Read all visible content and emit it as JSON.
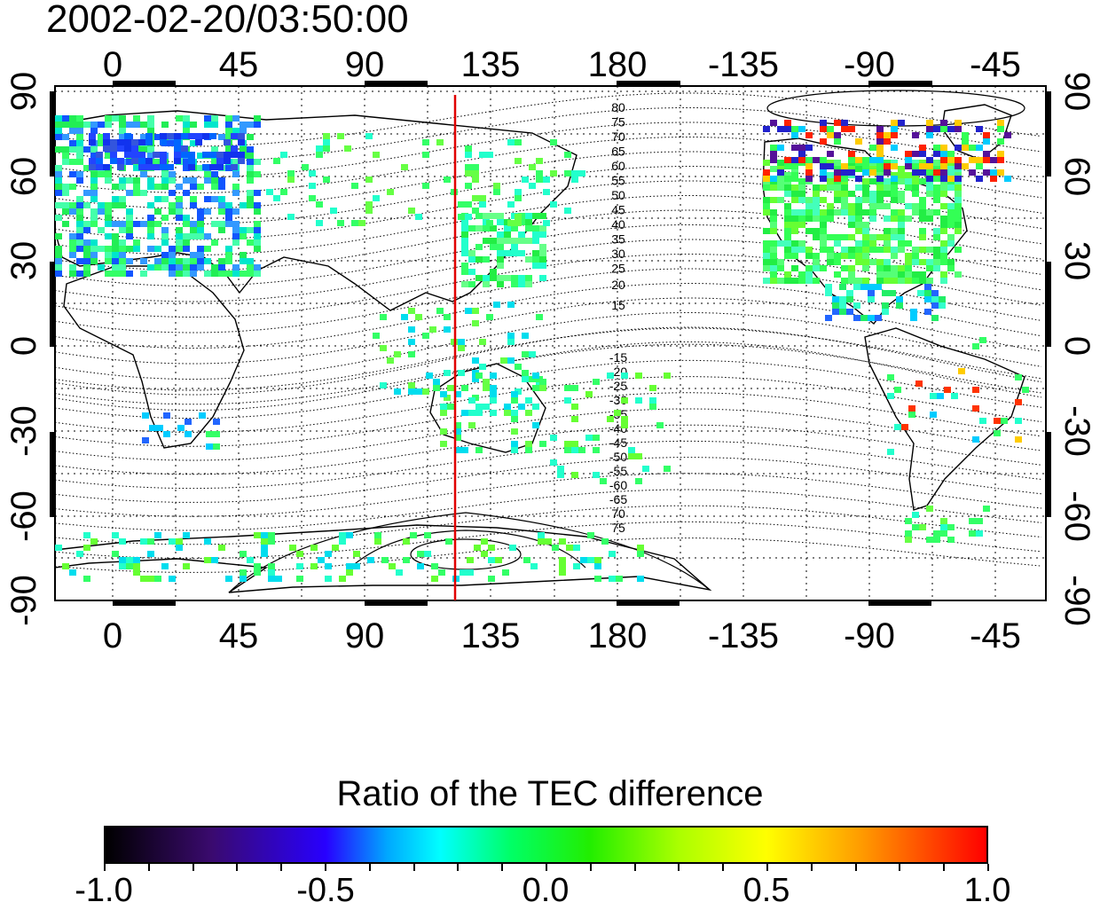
{
  "timestamp": "2002-02-20/03:50:00",
  "map": {
    "top_lon_ticks": [
      "0",
      "45",
      "90",
      "135",
      "180",
      "-135",
      "-90",
      "-45"
    ],
    "bottom_lon_ticks": [
      "0",
      "45",
      "90",
      "135",
      "180",
      "-135",
      "-90",
      "-45"
    ],
    "left_lat_ticks": [
      "90",
      "60",
      "30",
      "0",
      "-30",
      "-60",
      "-90"
    ],
    "right_lat_ticks": [
      "90",
      "60",
      "30",
      "0",
      "-30",
      "-60",
      "-90"
    ],
    "contour_labels_north": [
      "80",
      "75",
      "70",
      "65",
      "60",
      "55",
      "50",
      "45",
      "40",
      "35",
      "30",
      "25",
      "20",
      "15"
    ],
    "contour_labels_south": [
      "-15",
      "-20",
      "-25",
      "-30",
      "-35",
      "-40",
      "-45",
      "-50",
      "-55",
      "-60",
      "-65",
      "70",
      "75"
    ],
    "meridian_line_color": "#e00000"
  },
  "colorbar": {
    "title": "Ratio of the TEC difference",
    "labels": [
      "-1.0",
      "-0.5",
      "0.0",
      "0.5",
      "1.0"
    ]
  }
}
